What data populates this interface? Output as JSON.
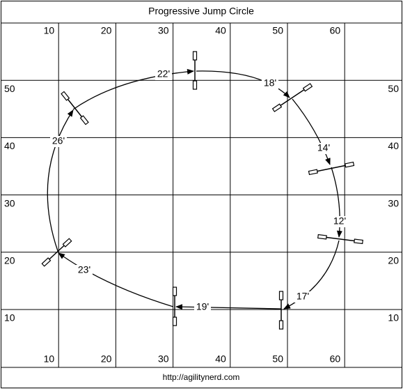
{
  "title": "Progressive Jump Circle",
  "footer": "http://agilitynerd.com",
  "grid_labels": {
    "top": [
      10,
      20,
      30,
      40,
      50,
      60
    ],
    "bottom": [
      10,
      20,
      30,
      40,
      50,
      60
    ],
    "left": [
      50,
      40,
      30,
      20,
      10
    ],
    "right": [
      50,
      40,
      30,
      20,
      10
    ]
  },
  "distances": [
    "22'",
    "18'",
    "14'",
    "12'",
    "17'",
    "19'",
    "23'",
    "26'"
  ]
}
